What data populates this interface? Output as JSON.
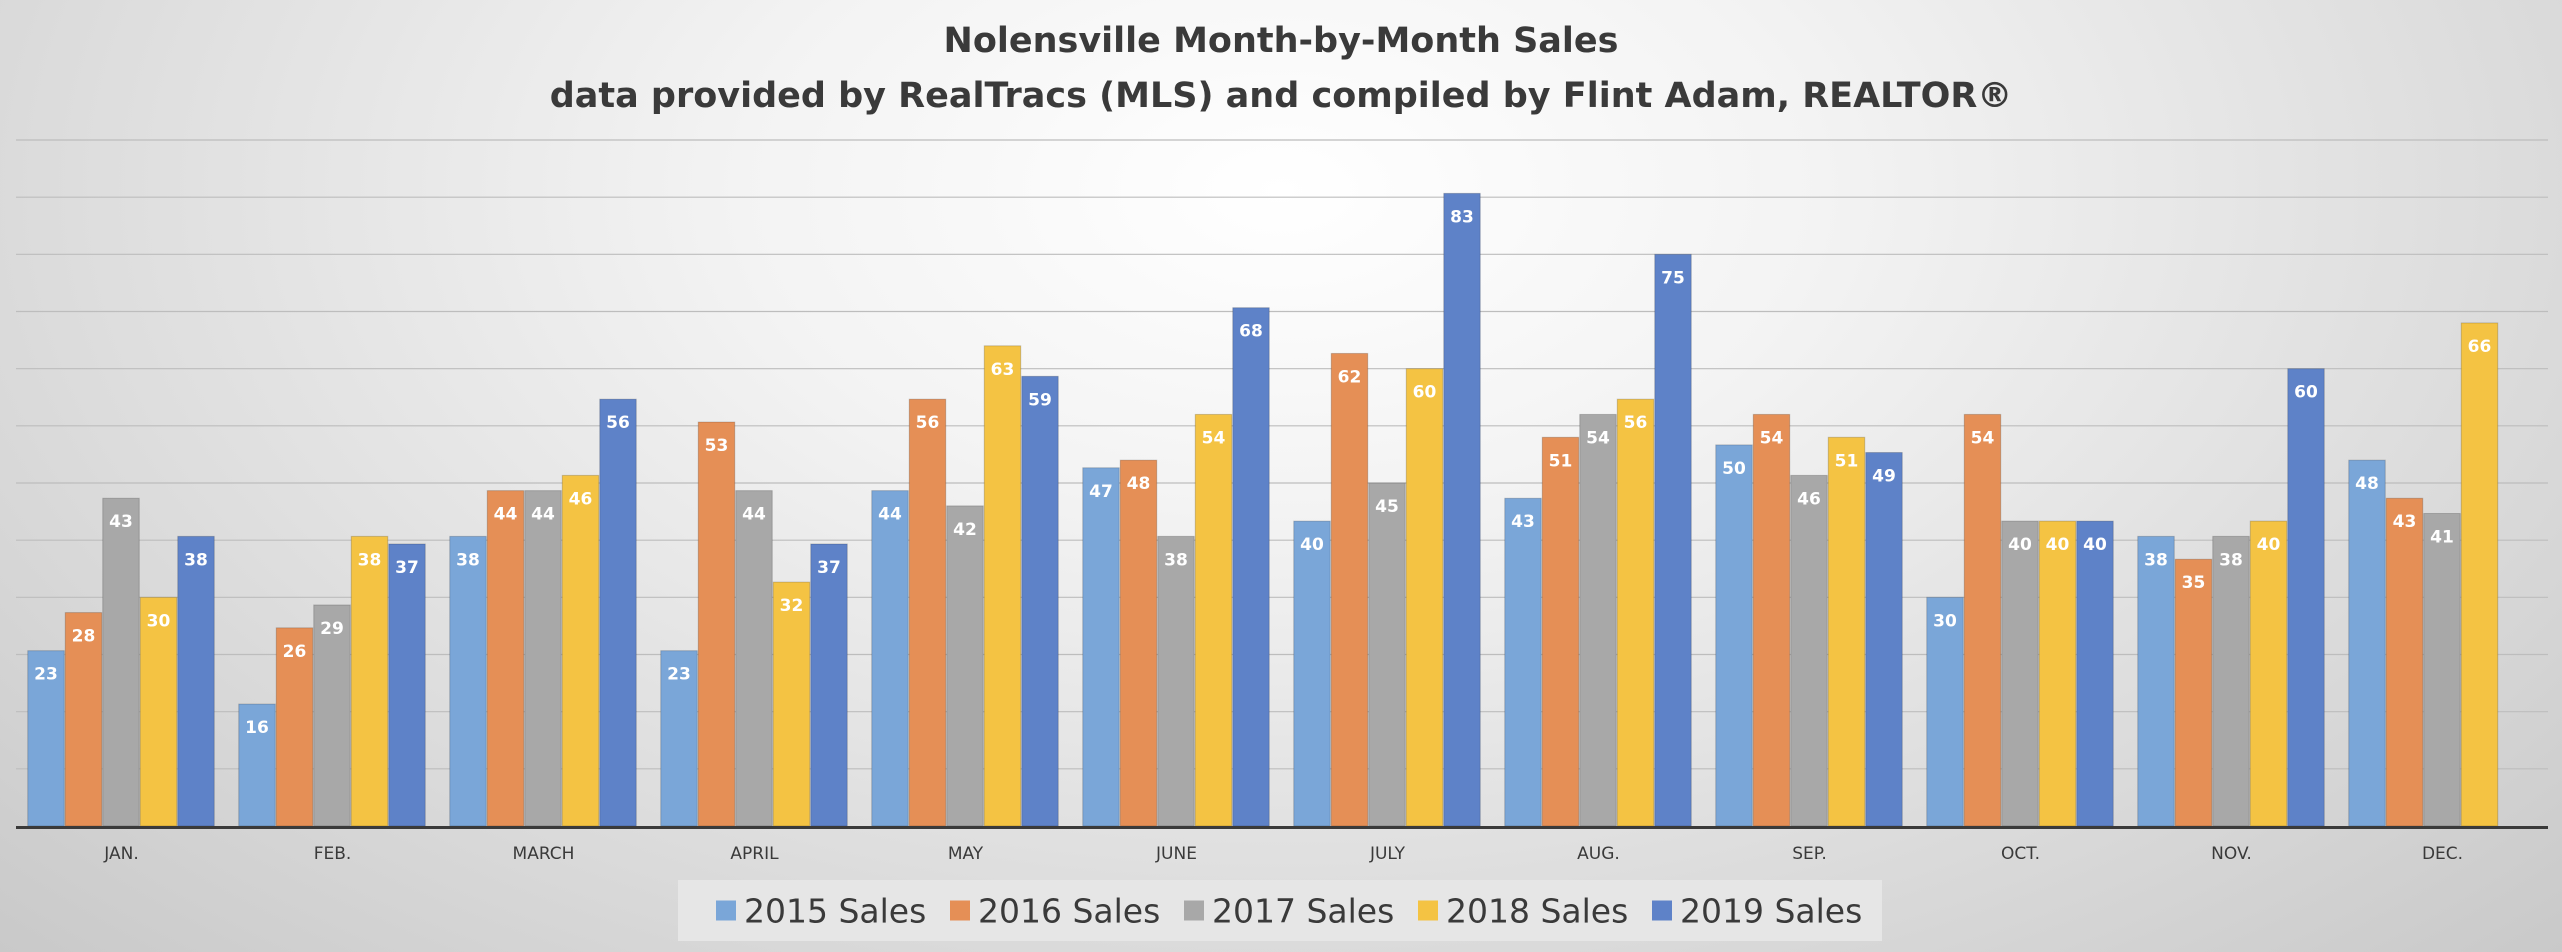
{
  "chart_data": {
    "type": "bar",
    "title": "Nolensville Month-by-Month Sales",
    "subtitle": "data provided by RealTracs (MLS) and compiled by Flint Adam, REALTOR®",
    "categories": [
      "JAN.",
      "FEB.",
      "MARCH",
      "APRIL",
      "MAY",
      "JUNE",
      "JULY",
      "AUG.",
      "SEP.",
      "OCT.",
      "NOV.",
      "DEC."
    ],
    "series": [
      {
        "name": "2015 Sales",
        "color": "#7aa6d8",
        "values": [
          23,
          16,
          38,
          23,
          44,
          47,
          40,
          43,
          50,
          30,
          38,
          48
        ]
      },
      {
        "name": "2016 Sales",
        "color": "#e58f56",
        "values": [
          28,
          26,
          44,
          53,
          56,
          48,
          62,
          51,
          54,
          54,
          35,
          43
        ]
      },
      {
        "name": "2017 Sales",
        "color": "#a8a8a8",
        "values": [
          43,
          29,
          44,
          44,
          42,
          38,
          45,
          54,
          46,
          40,
          38,
          41
        ]
      },
      {
        "name": "2018 Sales",
        "color": "#f4c343",
        "values": [
          30,
          38,
          46,
          32,
          63,
          54,
          60,
          56,
          51,
          40,
          40,
          66
        ]
      },
      {
        "name": "2019 Sales",
        "color": "#5e82c8",
        "values": [
          38,
          37,
          56,
          37,
          59,
          68,
          83,
          75,
          49,
          40,
          60,
          null
        ]
      }
    ],
    "ylim": [
      0,
      90
    ],
    "grid": true,
    "legend": "bottom"
  }
}
